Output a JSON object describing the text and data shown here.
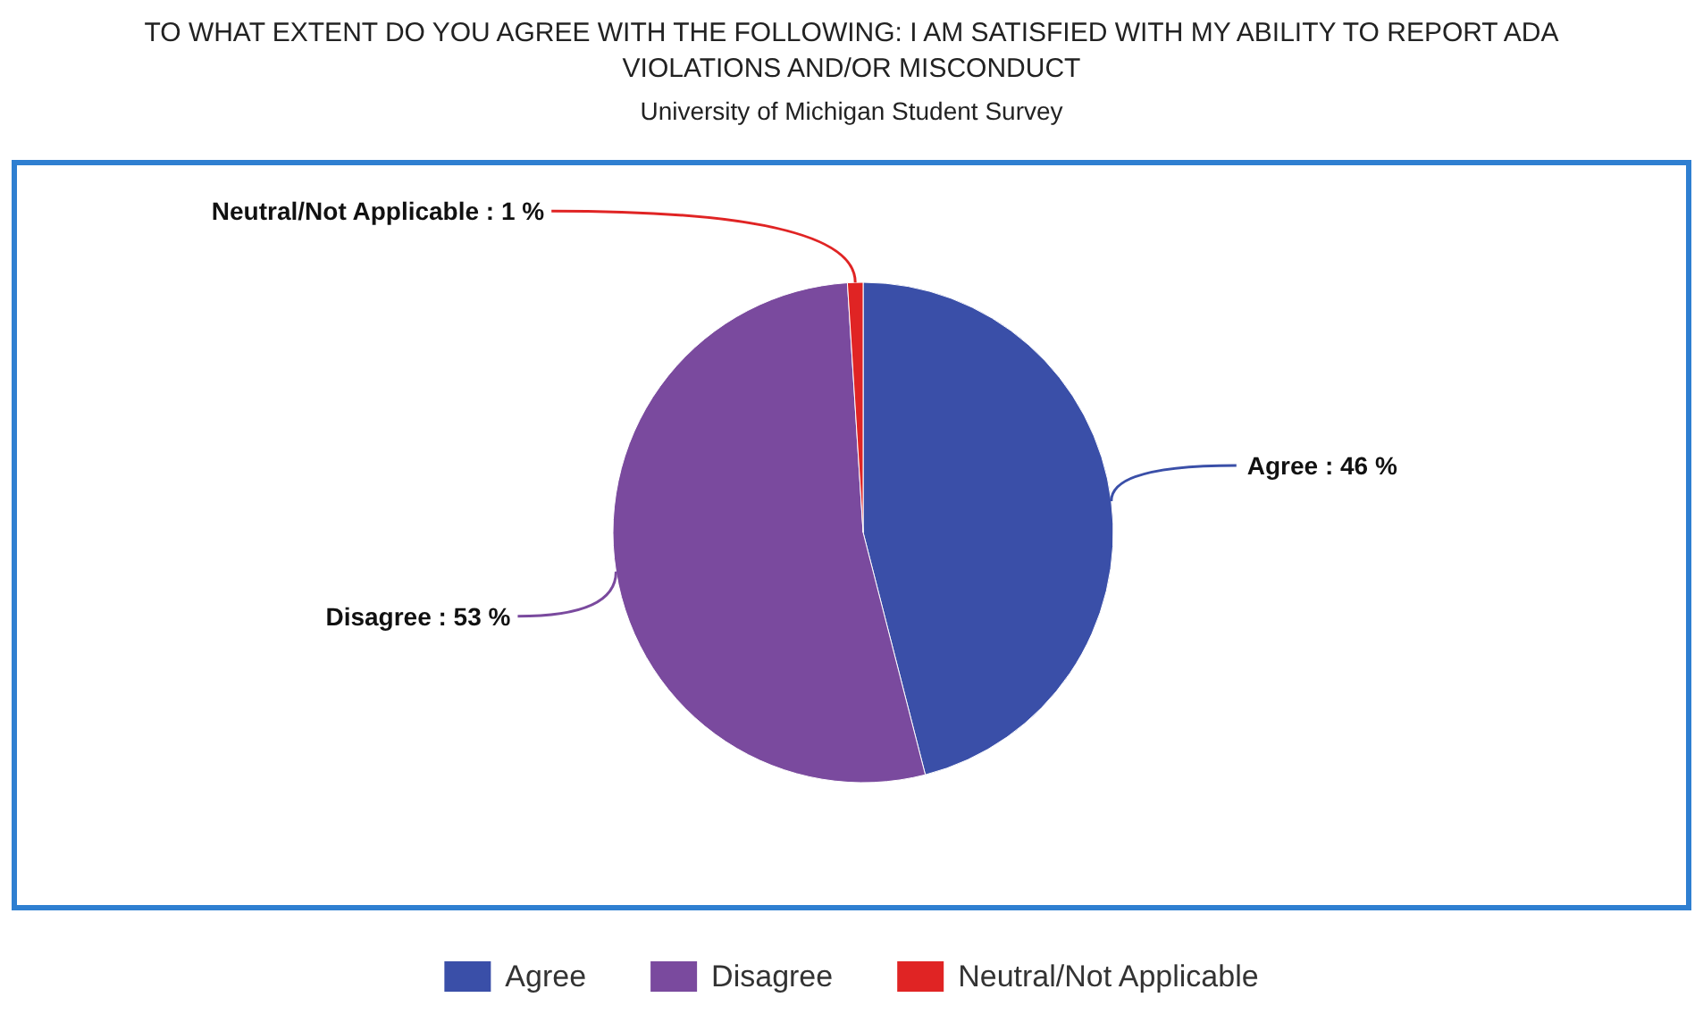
{
  "chart_data": {
    "type": "pie",
    "title": "TO WHAT EXTENT DO YOU AGREE WITH THE FOLLOWING: I AM SATISFIED WITH MY ABILITY TO REPORT ADA VIOLATIONS AND/OR MISCONDUCT",
    "subtitle": "University of Michigan Student Survey",
    "categories": [
      "Agree",
      "Disagree",
      "Neutral/Not Applicable"
    ],
    "values": [
      46,
      53,
      1
    ],
    "colors": [
      "#3a4fa8",
      "#7a4a9e",
      "#e02424"
    ],
    "value_labels": [
      ": 46 %",
      ": 53 %",
      ": 1 %"
    ],
    "legend": "bottom"
  }
}
